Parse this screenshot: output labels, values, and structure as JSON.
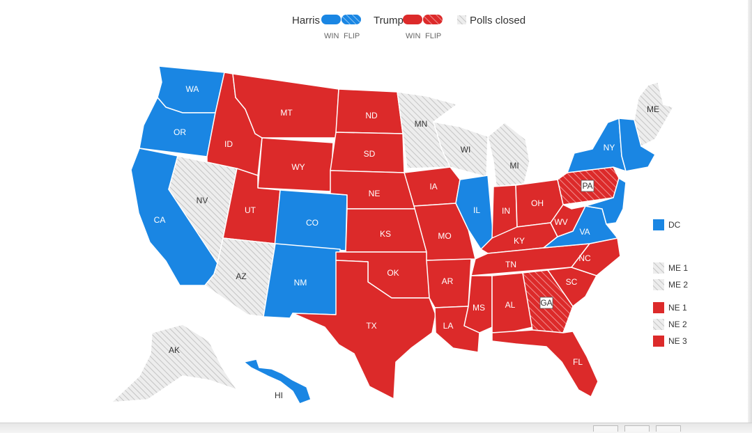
{
  "colors": {
    "harris": "#1a86e3",
    "trump": "#dc2a2a",
    "closed": "#e8e8e8",
    "border": "#ffffff"
  },
  "legend": {
    "harris_label": "Harris",
    "trump_label": "Trump",
    "closed_label": "Polls closed",
    "win_label": "WIN",
    "flip_label": "FLIP"
  },
  "states": [
    {
      "abbr": "WA",
      "status": "harris"
    },
    {
      "abbr": "OR",
      "status": "harris"
    },
    {
      "abbr": "CA",
      "status": "harris"
    },
    {
      "abbr": "ID",
      "status": "trump"
    },
    {
      "abbr": "NV",
      "status": "closed"
    },
    {
      "abbr": "MT",
      "status": "trump"
    },
    {
      "abbr": "WY",
      "status": "trump"
    },
    {
      "abbr": "UT",
      "status": "trump"
    },
    {
      "abbr": "AZ",
      "status": "closed"
    },
    {
      "abbr": "CO",
      "status": "harris"
    },
    {
      "abbr": "NM",
      "status": "harris"
    },
    {
      "abbr": "ND",
      "status": "trump"
    },
    {
      "abbr": "SD",
      "status": "trump"
    },
    {
      "abbr": "NE",
      "status": "trump"
    },
    {
      "abbr": "KS",
      "status": "trump"
    },
    {
      "abbr": "OK",
      "status": "trump"
    },
    {
      "abbr": "TX",
      "status": "trump"
    },
    {
      "abbr": "MN",
      "status": "closed"
    },
    {
      "abbr": "IA",
      "status": "trump"
    },
    {
      "abbr": "MO",
      "status": "trump"
    },
    {
      "abbr": "AR",
      "status": "trump"
    },
    {
      "abbr": "LA",
      "status": "trump"
    },
    {
      "abbr": "WI",
      "status": "closed"
    },
    {
      "abbr": "IL",
      "status": "harris"
    },
    {
      "abbr": "MI",
      "status": "closed"
    },
    {
      "abbr": "IN",
      "status": "trump"
    },
    {
      "abbr": "OH",
      "status": "trump"
    },
    {
      "abbr": "KY",
      "status": "trump"
    },
    {
      "abbr": "TN",
      "status": "trump"
    },
    {
      "abbr": "MS",
      "status": "trump"
    },
    {
      "abbr": "AL",
      "status": "trump"
    },
    {
      "abbr": "GA",
      "status": "trump-flip"
    },
    {
      "abbr": "FL",
      "status": "trump"
    },
    {
      "abbr": "SC",
      "status": "trump"
    },
    {
      "abbr": "NC",
      "status": "trump"
    },
    {
      "abbr": "VA",
      "status": "harris"
    },
    {
      "abbr": "WV",
      "status": "trump"
    },
    {
      "abbr": "PA",
      "status": "trump-flip"
    },
    {
      "abbr": "NY",
      "status": "harris"
    },
    {
      "abbr": "ME",
      "status": "closed"
    },
    {
      "abbr": "AK",
      "status": "closed"
    },
    {
      "abbr": "HI",
      "status": "harris"
    }
  ],
  "side_legend": [
    {
      "label": "DC",
      "status": "harris"
    },
    {
      "label": "ME 1",
      "status": "closed"
    },
    {
      "label": "ME 2",
      "status": "closed"
    },
    {
      "label": "NE 1",
      "status": "trump"
    },
    {
      "label": "NE 2",
      "status": "closed"
    },
    {
      "label": "NE 3",
      "status": "trump"
    }
  ]
}
